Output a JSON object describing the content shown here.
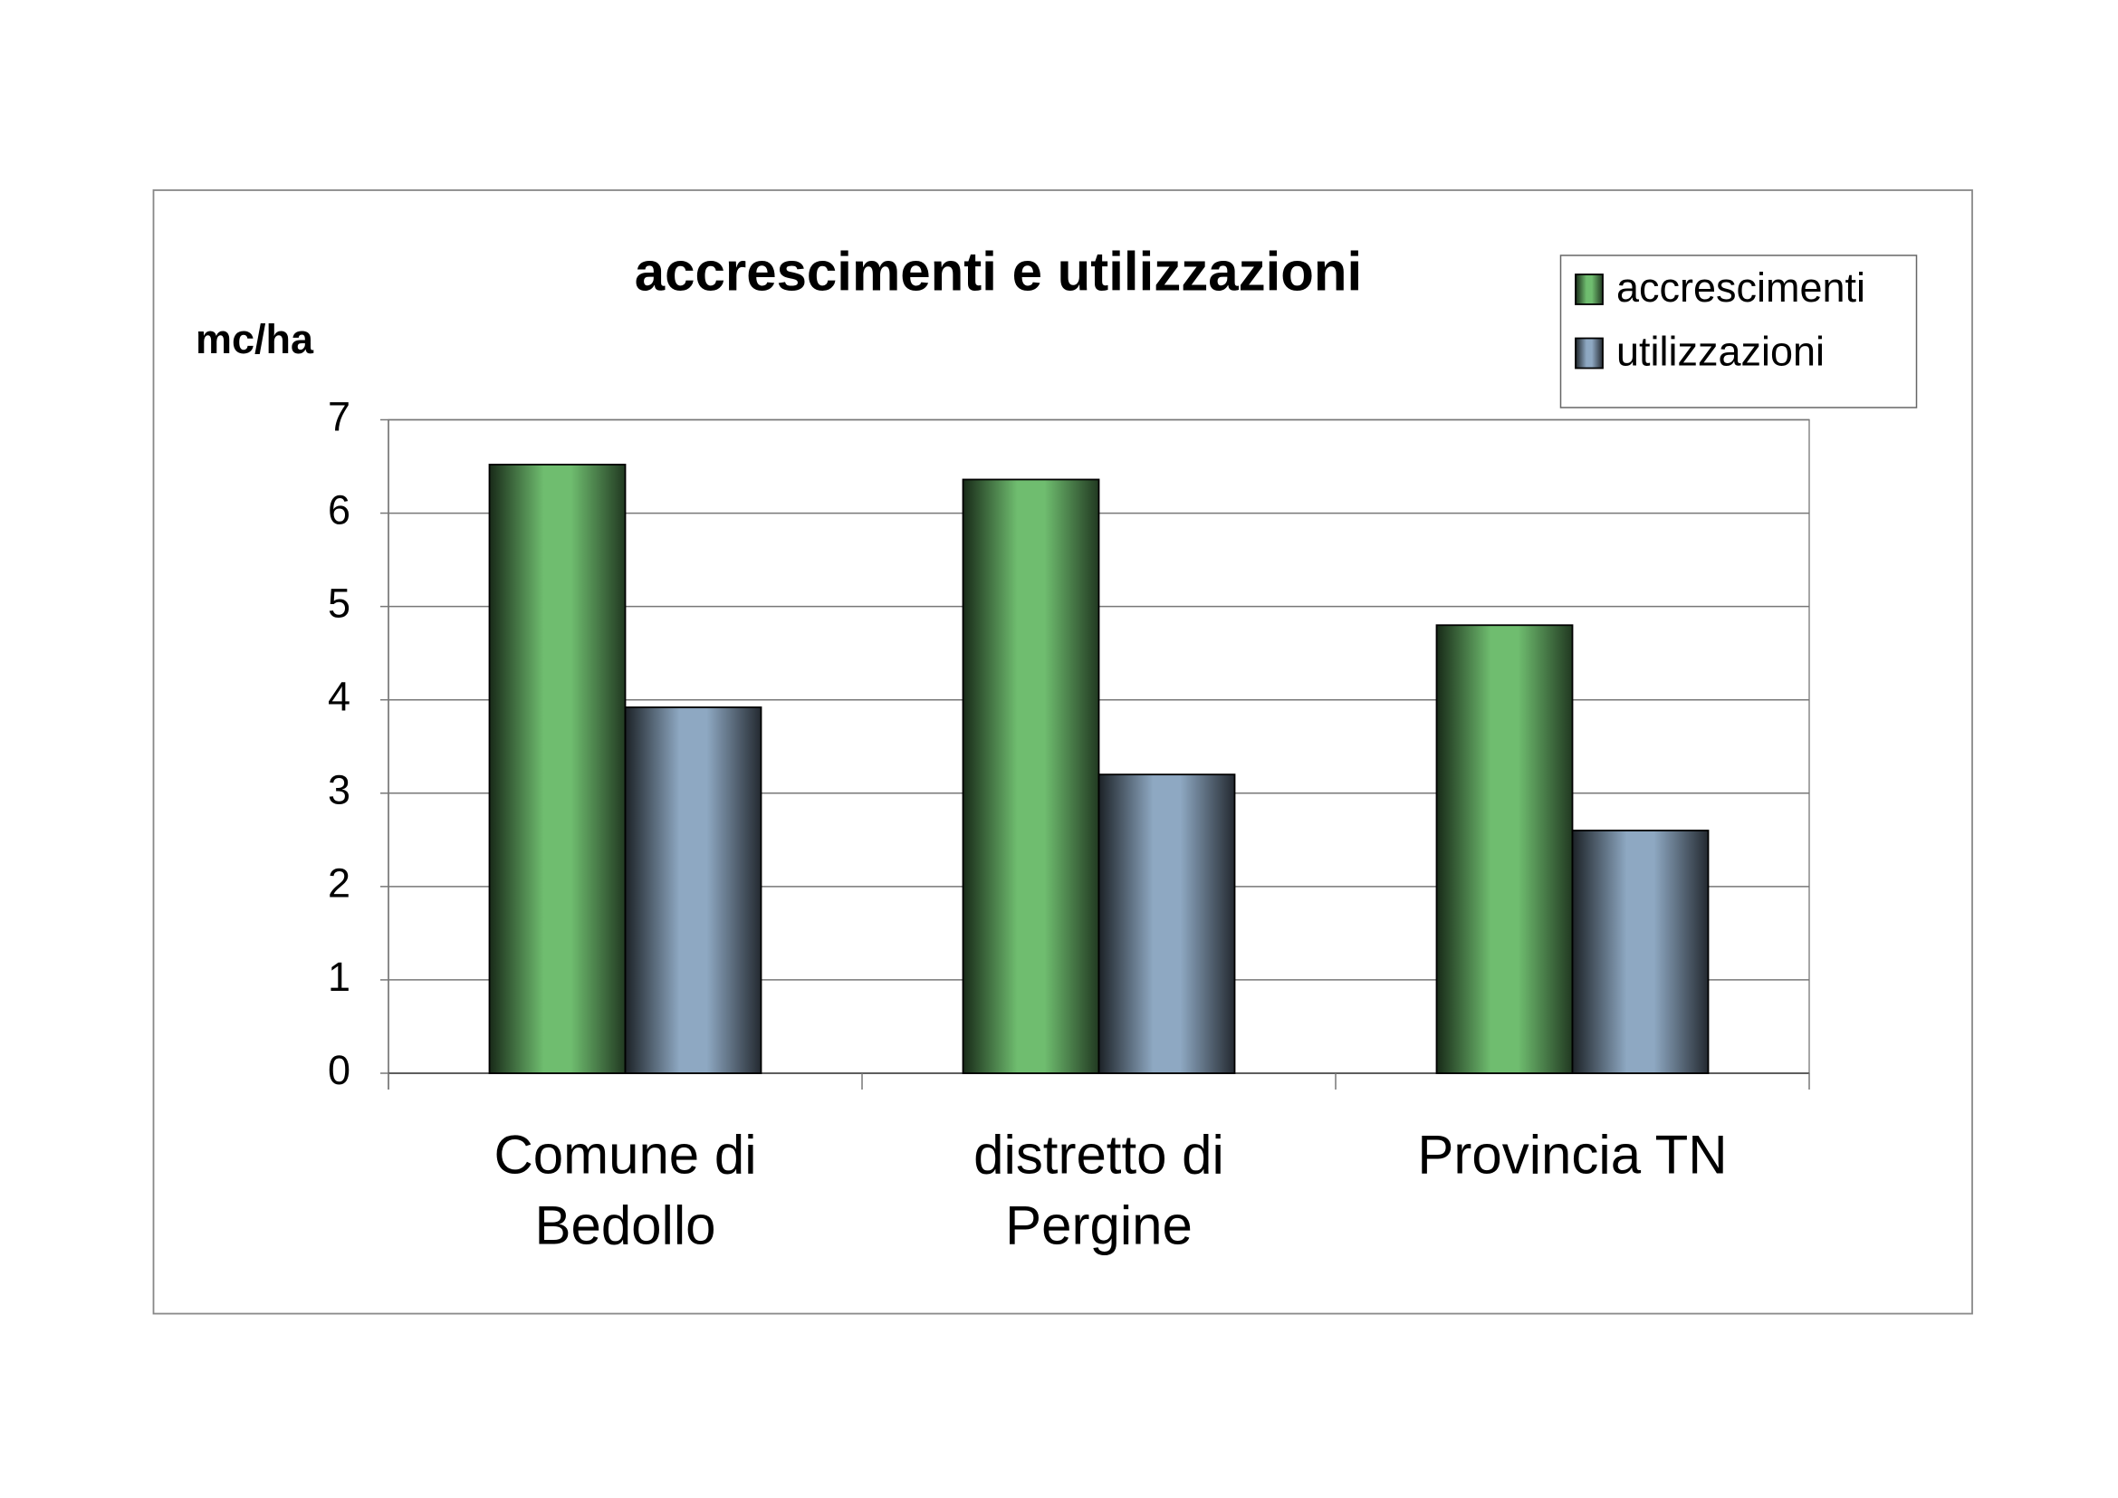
{
  "chart_data": {
    "type": "bar",
    "title": "accrescimenti e utilizzazioni",
    "y_label": "mc/ha",
    "categories": [
      [
        "Comune di",
        "Bedollo"
      ],
      [
        "distretto di",
        "Pergine"
      ],
      [
        "Provincia TN"
      ]
    ],
    "series": [
      {
        "name": "accrescimenti",
        "color": "#6fbd6f",
        "values": [
          6.52,
          6.36,
          4.8
        ]
      },
      {
        "name": "utilizzazioni",
        "color": "#8ea8c2",
        "values": [
          3.92,
          3.2,
          2.6
        ]
      }
    ],
    "ylim": [
      0,
      7
    ],
    "yticks": [
      0,
      1,
      2,
      3,
      4,
      5,
      6,
      7
    ],
    "grid": true,
    "legend": "top-right"
  }
}
